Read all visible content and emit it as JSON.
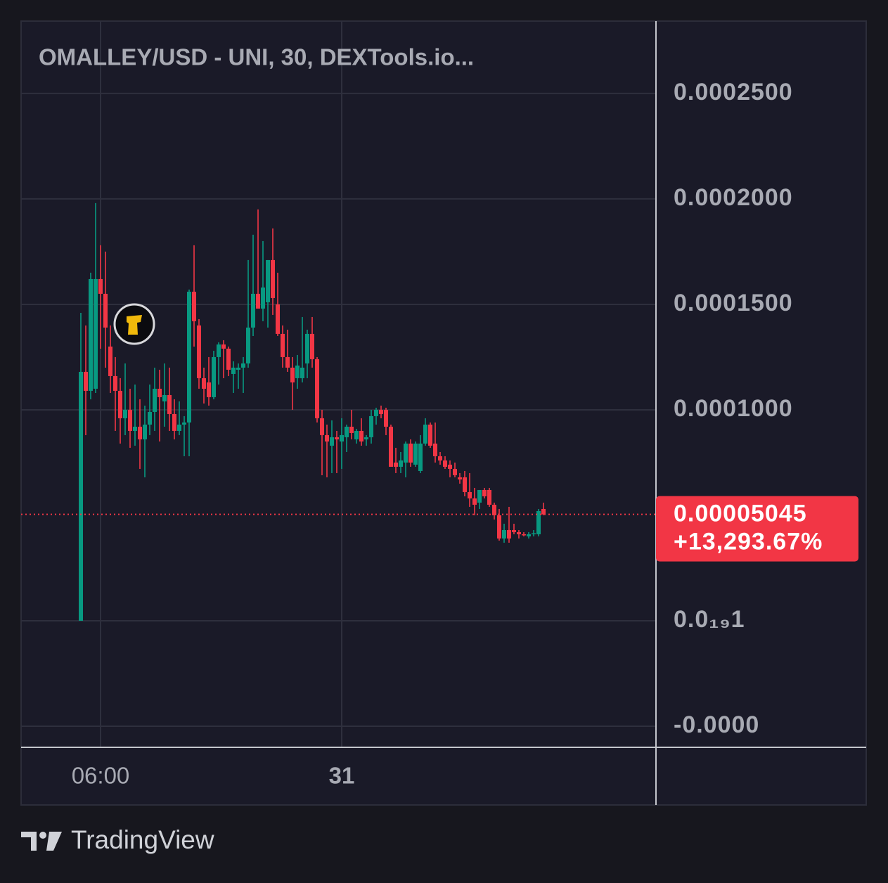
{
  "chart_data": {
    "type": "candlestick",
    "title": "OMALLEY/USD - UNI, 30, DEXTools.io...",
    "brand": "TradingView",
    "up_color": "#089981",
    "down_color": "#f23645",
    "grid": true,
    "categories": [
      null,
      null,
      null,
      null,
      "06:00",
      null,
      null,
      null,
      null,
      null,
      null,
      null,
      null,
      null,
      null,
      null,
      null,
      null,
      null,
      null,
      null,
      null,
      null,
      null,
      null,
      null,
      null,
      null,
      null,
      null,
      null,
      null,
      null,
      null,
      null,
      null,
      null,
      null,
      null,
      null,
      null,
      null,
      null,
      null,
      null,
      null,
      null,
      null,
      null,
      null,
      null,
      null,
      null,
      "31",
      null,
      null,
      null,
      null,
      null,
      null,
      null,
      null,
      null,
      null,
      null,
      null,
      null,
      null,
      null,
      null,
      null,
      null,
      null,
      null,
      null,
      null,
      null,
      null,
      null,
      null,
      null,
      null,
      null,
      null,
      null,
      null,
      null,
      null,
      null,
      null,
      null,
      null,
      null,
      null,
      null
    ],
    "open": [
      0,
      0.000118,
      0.000109,
      0.00011,
      0.000162,
      0.000155,
      0.00013,
      0.000116,
      0.000109,
      9.6e-05,
      0.0001,
      9e-05,
      9.2e-05,
      8.6e-05,
      9.3e-05,
      9.9e-05,
      0.00011,
      0.000104,
      0.000107,
      9.8e-05,
      9e-05,
      9.3e-05,
      9.4e-05,
      0.000156,
      0.00014,
      0.000115,
      0.000113,
      0.000106,
      0.000125,
      0.000131,
      0.000129,
      0.000117,
      0.000119,
      0.00012,
      0.000122,
      0.000139,
      0.000155,
      0.000148,
      0.000151,
      0.000171,
      0.00015,
      0.000136,
      0.000125,
      0.00012,
      0.000115,
      0.000115,
      0.000122,
      0.000136,
      0.000124,
      9.6e-05,
      8.8e-05,
      8.3e-05,
      8.7e-05,
      8.5e-05,
      8.7e-05,
      9.2e-05,
      8.6e-05,
      9e-05,
      8.6e-05,
      8.7e-05,
      9.7e-05,
      0.0001,
      0.0001,
      9.2e-05,
      7.5e-05,
      7.3e-05,
      7.5e-05,
      8.4e-05,
      7.4e-05,
      7.1e-05,
      8.4e-05,
      9.3e-05,
      8.4e-05,
      7.8e-05,
      7.6e-05,
      7.4e-05,
      7.2e-05,
      6.8e-05,
      6.8e-05,
      6.1e-05,
      5.8e-05,
      5.6e-05,
      6.2e-05,
      6.2e-05,
      5.5e-05,
      5e-05,
      3.9e-05,
      4.3e-05,
      4.3e-05,
      4.2e-05,
      4.1e-05,
      4e-05,
      4.1e-05,
      4.1e-05,
      5.3e-05
    ],
    "high": [
      0.000146,
      0.00014,
      0.000165,
      0.000198,
      0.000178,
      0.000175,
      0.00014,
      0.000125,
      0.000115,
      0.000122,
      0.00011,
      0.000112,
      0.000105,
      0.000102,
      0.000112,
      0.00012,
      0.000119,
      0.000122,
      0.00012,
      0.000105,
      0.000104,
      9.7e-05,
      0.000157,
      0.000178,
      0.000143,
      0.00012,
      0.000125,
      0.000128,
      0.000132,
      0.000133,
      0.00013,
      0.000123,
      0.000122,
      0.000125,
      0.000171,
      0.000183,
      0.000195,
      0.00018,
      0.000171,
      0.000186,
      0.000165,
      0.00014,
      0.000138,
      0.000125,
      0.000126,
      0.000144,
      0.000138,
      0.000144,
      0.000125,
      0.0001,
      9.3e-05,
      9.5e-05,
      9e-05,
      9.6e-05,
      9.3e-05,
      0.0001,
      9.1e-05,
      9.6e-05,
      8.8e-05,
      0.0001,
      0.000101,
      0.000102,
      0.000101,
      9.3e-05,
      8.2e-05,
      8e-05,
      8.5e-05,
      8.6e-05,
      8.5e-05,
      8.8e-05,
      9.6e-05,
      9.4e-05,
      9.4e-05,
      8e-05,
      7.8e-05,
      7.6e-05,
      7.5e-05,
      7e-05,
      7.1e-05,
      7e-05,
      6.3e-05,
      6.2e-05,
      6.3e-05,
      6.3e-05,
      5.6e-05,
      5.3e-05,
      4.6e-05,
      5.4e-05,
      4.6e-05,
      4.3e-05,
      4.2e-05,
      4.2e-05,
      4.3e-05,
      5.3e-05,
      5.6e-05
    ],
    "low": [
      0,
      8.8e-05,
      0.000105,
      0.000108,
      0.000129,
      0.00012,
      0.000108,
      9e-05,
      8.4e-05,
      8.8e-05,
      8.2e-05,
      8.3e-05,
      7.2e-05,
      6.8e-05,
      8.8e-05,
      9e-05,
      8.5e-05,
      9.2e-05,
      9e-05,
      8.6e-05,
      8.8e-05,
      7.8e-05,
      7.8e-05,
      0.00013,
      0.00011,
      0.000103,
      0.000102,
      0.000105,
      0.000112,
      0.000115,
      0.000116,
      0.000108,
      0.00011,
      0.000108,
      0.00012,
      0.000135,
      0.000148,
      0.000142,
      0.000139,
      0.000145,
      0.000135,
      0.00012,
      0.000118,
      0.0001,
      0.00011,
      0.000113,
      0.000115,
      0.00012,
      9.4e-05,
      6.9e-05,
      6.8e-05,
      7e-05,
      7e-05,
      7.2e-05,
      8e-05,
      8.6e-05,
      8.4e-05,
      8.3e-05,
      8.3e-05,
      8.4e-05,
      9.3e-05,
      9.6e-05,
      8.8e-05,
      7.3e-05,
      7e-05,
      7e-05,
      6.8e-05,
      7.3e-05,
      7.3e-05,
      7e-05,
      8.3e-05,
      8.2e-05,
      7.5e-05,
      7.4e-05,
      7.2e-05,
      6.8e-05,
      6.8e-05,
      6.5e-05,
      5.9e-05,
      5.4e-05,
      5e-05,
      5.3e-05,
      5.8e-05,
      5.4e-05,
      4.8e-05,
      3.8e-05,
      3.7e-05,
      3.7e-05,
      4.1e-05,
      3.9e-05,
      4e-05,
      3.9e-05,
      4e-05,
      4e-05,
      5e-05
    ],
    "close": [
      0.000118,
      0.000109,
      0.000162,
      0.000162,
      0.000155,
      0.000139,
      0.000116,
      0.000109,
      9.6e-05,
      0.0001,
      9e-05,
      9.2e-05,
      8.6e-05,
      9.3e-05,
      9.9e-05,
      0.00011,
      0.000106,
      0.000107,
      9.8e-05,
      9e-05,
      9.3e-05,
      9.4e-05,
      0.000156,
      0.000142,
      0.000115,
      0.00011,
      0.000106,
      0.000125,
      0.000131,
      0.000129,
      0.000119,
      0.00012,
      0.00012,
      0.000122,
      0.000139,
      0.000155,
      0.000148,
      0.000158,
      0.000171,
      0.000153,
      0.000136,
      0.000125,
      0.00012,
      0.000113,
      0.000121,
      0.00012,
      0.000136,
      0.000124,
      9.6e-05,
      8.8e-05,
      8.5e-05,
      8.7e-05,
      8.6e-05,
      8.8e-05,
      9.2e-05,
      8.9e-05,
      9e-05,
      8.5e-05,
      8.7e-05,
      9.7e-05,
      0.0001,
      9.8e-05,
      9.2e-05,
      7.3e-05,
      7.3e-05,
      7.6e-05,
      8.4e-05,
      7.5e-05,
      8.4e-05,
      8.4e-05,
      9.3e-05,
      8.3e-05,
      7.8e-05,
      7.6e-05,
      7.3e-05,
      7.2e-05,
      6.9e-05,
      6.7e-05,
      6.1e-05,
      5.8e-05,
      5.5e-05,
      6.2e-05,
      5.9e-05,
      5.5e-05,
      5e-05,
      3.9e-05,
      4.3e-05,
      3.9e-05,
      4.2e-05,
      4.1e-05,
      4.05e-05,
      4.1e-05,
      4.15e-05,
      5.2e-05,
      5.045e-05
    ],
    "ylim": [
      -6e-05,
      0.0002843
    ],
    "yticks": [
      {
        "value": 0.00025,
        "label": "0.0002500"
      },
      {
        "value": 0.0002,
        "label": "0.0002000"
      },
      {
        "value": 0.00015,
        "label": "0.0001500"
      },
      {
        "value": 0.0001,
        "label": "0.0001000"
      },
      {
        "value": 1e-20,
        "label": "0.0₁₉1"
      },
      {
        "value": -5e-05,
        "label": "-0.0000"
      }
    ],
    "last_price": 5.045e-05,
    "change": {
      "value": 13293.67,
      "label": "+13,293.67%"
    }
  }
}
